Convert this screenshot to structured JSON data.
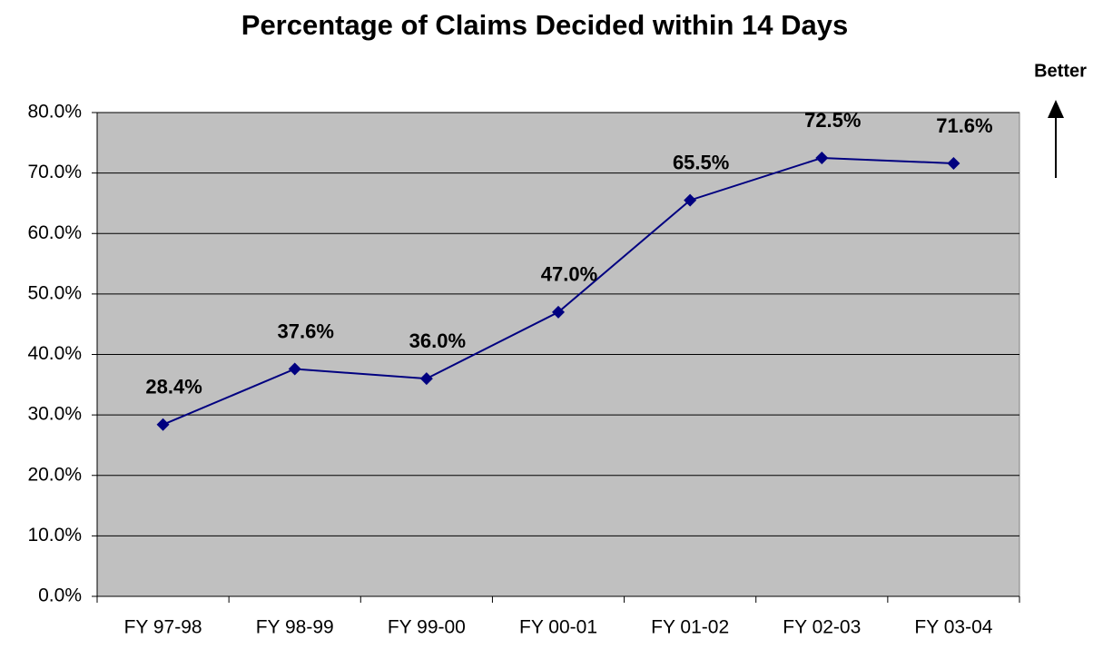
{
  "chart_data": {
    "type": "line",
    "title": "Percentage of Claims Decided within 14 Days",
    "annotation": "Better",
    "categories": [
      "FY 97-98",
      "FY 98-99",
      "FY 99-00",
      "FY 00-01",
      "FY 01-02",
      "FY 02-03",
      "FY 03-04"
    ],
    "series": [
      {
        "name": "Percentage of Claims Decided within 14 Days",
        "color": "#000080",
        "values": [
          28.4,
          37.6,
          36.0,
          47.0,
          65.5,
          72.5,
          71.6
        ],
        "value_labels": [
          "28.4%",
          "37.6%",
          "36.0%",
          "47.0%",
          "65.5%",
          "72.5%",
          "71.6%"
        ]
      }
    ],
    "ylim": [
      0,
      80
    ],
    "yticks": [
      {
        "value": 0,
        "label": "0.0%"
      },
      {
        "value": 10,
        "label": "10.0%"
      },
      {
        "value": 20,
        "label": "20.0%"
      },
      {
        "value": 30,
        "label": "30.0%"
      },
      {
        "value": 40,
        "label": "40.0%"
      },
      {
        "value": 50,
        "label": "50.0%"
      },
      {
        "value": 60,
        "label": "60.0%"
      },
      {
        "value": 70,
        "label": "70.0%"
      },
      {
        "value": 80,
        "label": "80.0%"
      }
    ],
    "grid": true,
    "plot_background": "#c0c0c0"
  }
}
